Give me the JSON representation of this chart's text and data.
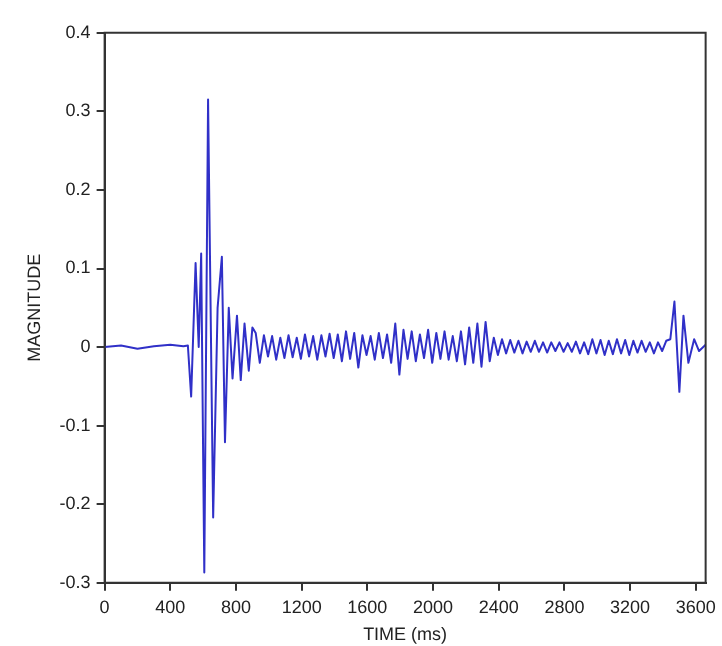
{
  "chart_data": {
    "type": "line",
    "xlabel": "TIME (ms)",
    "ylabel": "MAGNITUDE",
    "grid": false,
    "legend": false,
    "marker": "none",
    "line_style": "solid",
    "xlim": [
      0,
      3660
    ],
    "xticks": [
      0,
      400,
      800,
      1200,
      1600,
      2000,
      2400,
      2800,
      3200,
      3600
    ],
    "ylim": [
      -0.3,
      0.4
    ],
    "yticks": [
      -0.3,
      -0.2,
      -0.1,
      0,
      0.1,
      0.2,
      0.3,
      0.4
    ],
    "series": [
      {
        "color": "#3030c8",
        "x": [
          0,
          100,
          200,
          300,
          400,
          480,
          507,
          527,
          554,
          573,
          588,
          607,
          630,
          661,
          688,
          714,
          733,
          756,
          779,
          806,
          829,
          852,
          878,
          900,
          920,
          945,
          970,
          995,
          1020,
          1045,
          1070,
          1095,
          1120,
          1145,
          1170,
          1195,
          1220,
          1245,
          1270,
          1295,
          1320,
          1345,
          1370,
          1395,
          1420,
          1445,
          1470,
          1495,
          1520,
          1545,
          1570,
          1595,
          1620,
          1645,
          1670,
          1695,
          1720,
          1745,
          1770,
          1795,
          1820,
          1845,
          1870,
          1895,
          1920,
          1945,
          1970,
          1995,
          2020,
          2045,
          2070,
          2095,
          2120,
          2145,
          2170,
          2195,
          2220,
          2245,
          2270,
          2295,
          2320,
          2345,
          2370,
          2395,
          2420,
          2445,
          2470,
          2495,
          2520,
          2545,
          2570,
          2595,
          2620,
          2645,
          2670,
          2695,
          2720,
          2745,
          2770,
          2795,
          2820,
          2845,
          2870,
          2895,
          2920,
          2945,
          2970,
          2995,
          3020,
          3045,
          3070,
          3095,
          3120,
          3145,
          3170,
          3195,
          3220,
          3245,
          3270,
          3295,
          3320,
          3345,
          3370,
          3395,
          3420,
          3445,
          3470,
          3500,
          3525,
          3555,
          3590,
          3620,
          3660
        ],
        "values": [
          0,
          0.002,
          -0.002,
          0.001,
          0.003,
          0.001,
          0.002,
          -0.063,
          0.107,
          0,
          0.119,
          -0.287,
          0.315,
          -0.217,
          0.05,
          0.115,
          -0.121,
          0.05,
          -0.04,
          0.04,
          -0.042,
          0.03,
          -0.03,
          0.025,
          0.018,
          -0.02,
          0.015,
          -0.012,
          0.014,
          -0.016,
          0.012,
          -0.014,
          0.015,
          -0.013,
          0.012,
          -0.015,
          0.016,
          -0.012,
          0.014,
          -0.016,
          0.015,
          -0.012,
          0.017,
          -0.014,
          0.016,
          -0.018,
          0.02,
          -0.015,
          0.018,
          -0.026,
          0.015,
          -0.01,
          0.014,
          -0.016,
          0.018,
          -0.014,
          0.016,
          -0.02,
          0.03,
          -0.035,
          0.022,
          -0.015,
          0.02,
          -0.018,
          0.016,
          -0.014,
          0.022,
          -0.02,
          0.018,
          -0.015,
          0.02,
          -0.016,
          0.014,
          -0.018,
          0.02,
          -0.022,
          0.025,
          -0.02,
          0.03,
          -0.025,
          0.032,
          -0.018,
          0.012,
          -0.01,
          0.01,
          -0.008,
          0.009,
          -0.007,
          0.008,
          -0.008,
          0.007,
          -0.006,
          0.008,
          -0.006,
          0.006,
          -0.007,
          0.006,
          -0.005,
          0.006,
          -0.006,
          0.005,
          -0.006,
          0.007,
          -0.008,
          0.006,
          -0.009,
          0.01,
          -0.008,
          0.009,
          -0.01,
          0.008,
          -0.009,
          0.01,
          -0.008,
          0.009,
          -0.01,
          0.008,
          -0.007,
          0.008,
          -0.006,
          0.006,
          -0.008,
          0.006,
          -0.005,
          0.008,
          0.01,
          0.058,
          -0.057,
          0.04,
          -0.02,
          0.01,
          -0.005,
          0.003
        ]
      }
    ]
  }
}
